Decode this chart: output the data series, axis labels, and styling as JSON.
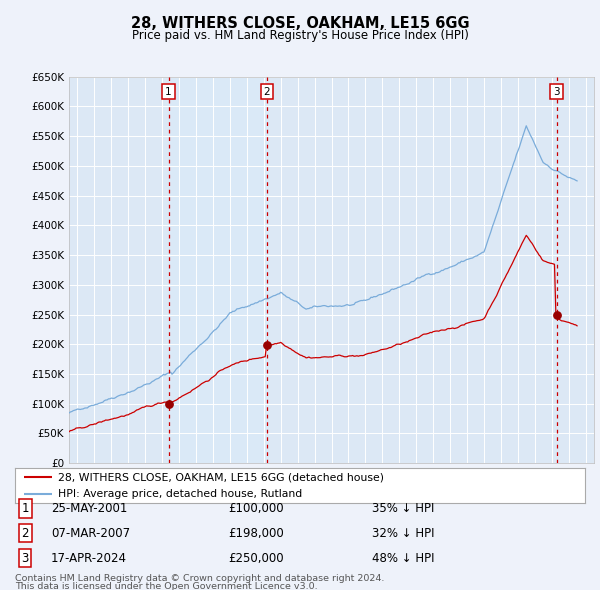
{
  "title": "28, WITHERS CLOSE, OAKHAM, LE15 6GG",
  "subtitle": "Price paid vs. HM Land Registry's House Price Index (HPI)",
  "legend_property": "28, WITHERS CLOSE, OAKHAM, LE15 6GG (detached house)",
  "legend_hpi": "HPI: Average price, detached house, Rutland",
  "footer_line1": "Contains HM Land Registry data © Crown copyright and database right 2024.",
  "footer_line2": "This data is licensed under the Open Government Licence v3.0.",
  "sales": [
    {
      "num": 1,
      "date": "25-MAY-2001",
      "price": "£100,000",
      "pct": "35% ↓ HPI",
      "year": 2001.38
    },
    {
      "num": 2,
      "date": "07-MAR-2007",
      "price": "£198,000",
      "pct": "32% ↓ HPI",
      "year": 2007.18
    },
    {
      "num": 3,
      "date": "17-APR-2024",
      "price": "£250,000",
      "pct": "48% ↓ HPI",
      "year": 2024.29
    }
  ],
  "ylim": [
    0,
    650000
  ],
  "xlim": [
    1995.5,
    2026.5
  ],
  "bg_color": "#eef2fa",
  "plot_bg": "#dce8f5",
  "grid_color": "#ffffff",
  "red_line_color": "#cc0000",
  "blue_line_color": "#7aacda",
  "sale_marker_color": "#990000",
  "vline_color": "#cc0000",
  "shade_color": "#daeaf8"
}
